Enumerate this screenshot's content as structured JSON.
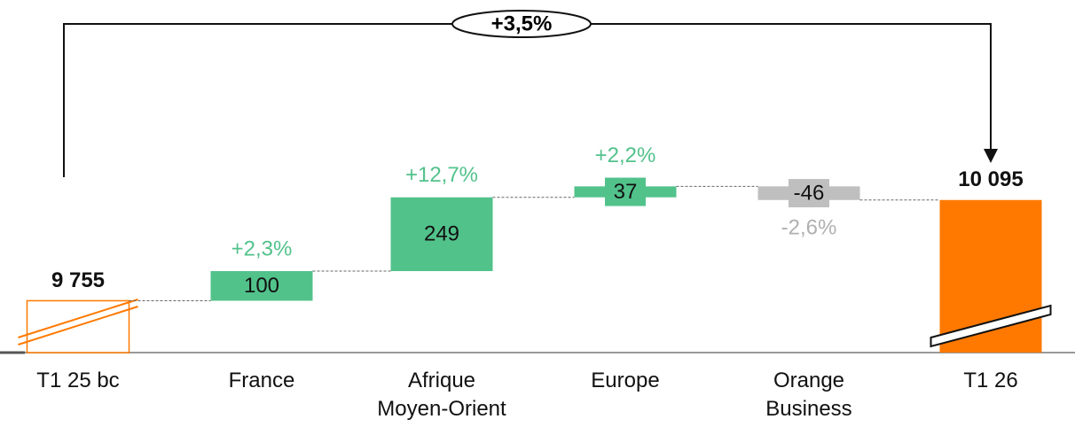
{
  "chart_data": {
    "type": "waterfall",
    "categories": [
      "T1 25 bc",
      "France",
      "Afrique Moyen-Orient",
      "Europe",
      "Orange Business",
      "T1 26"
    ],
    "values": [
      9755,
      100,
      249,
      37,
      -46,
      10095
    ],
    "value_labels": [
      "9 755",
      "100",
      "249",
      "37",
      "-46",
      "10 095"
    ],
    "change_labels": [
      null,
      "+2,3%",
      "+12,7%",
      "+2,2%",
      "-2,6%",
      null
    ],
    "total_change_label": "+3,5%",
    "colors": {
      "total": "#ff7900",
      "increase": "#52c28b",
      "decrease": "#bfbfbf"
    },
    "ylim": [
      9580,
      10770
    ],
    "axis_break": true
  }
}
